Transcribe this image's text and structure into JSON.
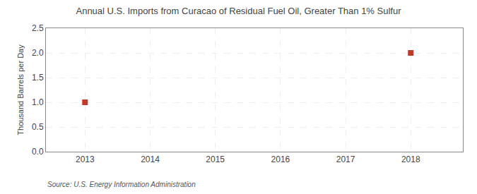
{
  "chart_data": {
    "type": "scatter",
    "title": "Annual U.S. Imports from Curacao of Residual Fuel Oil, Greater Than 1% Sulfur",
    "ylabel": "Thousand Barrels per Day",
    "annotations": [
      "Source: U.S. Energy Information Administration"
    ],
    "x": [
      2013,
      2018
    ],
    "values": [
      1.0,
      2.0
    ],
    "color": "#c0392b",
    "marker": "square",
    "xlim": [
      2012.4,
      2018.8
    ],
    "xticks": [
      2013,
      2014,
      2015,
      2016,
      2017,
      2018
    ],
    "ylim": [
      0.0,
      2.5
    ],
    "yticks": [
      {
        "value": 0.0,
        "label": "0.0"
      },
      0.5,
      {
        "value": 1.0,
        "label": "1.0"
      },
      1.5,
      {
        "value": 2.0,
        "label": "2.0"
      },
      2.5
    ],
    "grid": true
  }
}
